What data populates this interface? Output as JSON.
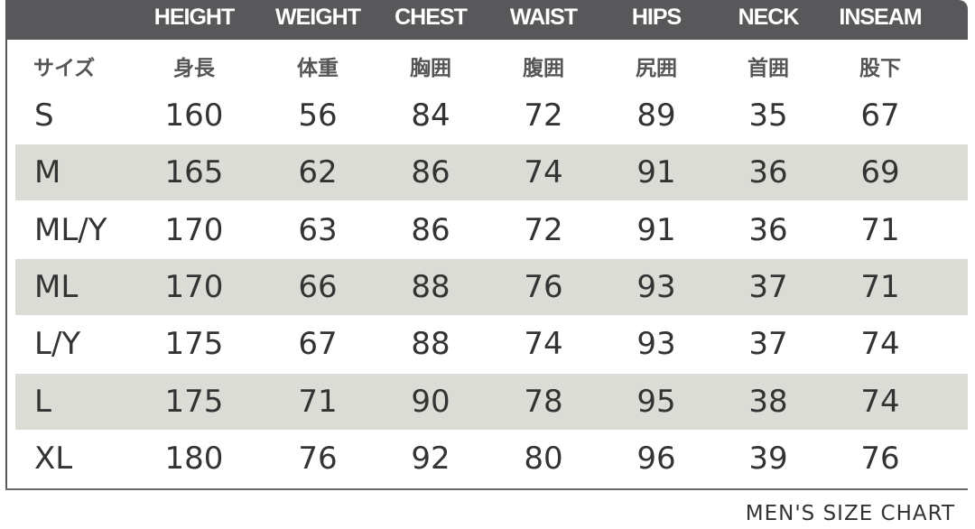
{
  "header": {
    "columns": [
      "HEIGHT",
      "WEIGHT",
      "CHEST",
      "WAIST",
      "HIPS",
      "NECK",
      "INSEAM"
    ]
  },
  "japanese_header": [
    "サイズ",
    "身長",
    "体重",
    "胸囲",
    "腹囲",
    "尻囲",
    "首囲",
    "股下"
  ],
  "rows": [
    [
      "S",
      "160",
      "56",
      "84",
      "72",
      "89",
      "35",
      "67"
    ],
    [
      "M",
      "165",
      "62",
      "86",
      "74",
      "91",
      "36",
      "69"
    ],
    [
      "ML/Y",
      "170",
      "63",
      "86",
      "72",
      "91",
      "36",
      "71"
    ],
    [
      "ML",
      "170",
      "66",
      "88",
      "76",
      "93",
      "37",
      "71"
    ],
    [
      "L/Y",
      "175",
      "67",
      "88",
      "74",
      "93",
      "37",
      "74"
    ],
    [
      "L",
      "175",
      "71",
      "90",
      "78",
      "95",
      "38",
      "74"
    ],
    [
      "XL",
      "180",
      "76",
      "92",
      "80",
      "96",
      "39",
      "76"
    ]
  ],
  "caption": "MEN'S SIZE CHART",
  "colors": {
    "header_bg": "#58575a",
    "shade_row": "#dcdcd7",
    "text": "#333333"
  }
}
